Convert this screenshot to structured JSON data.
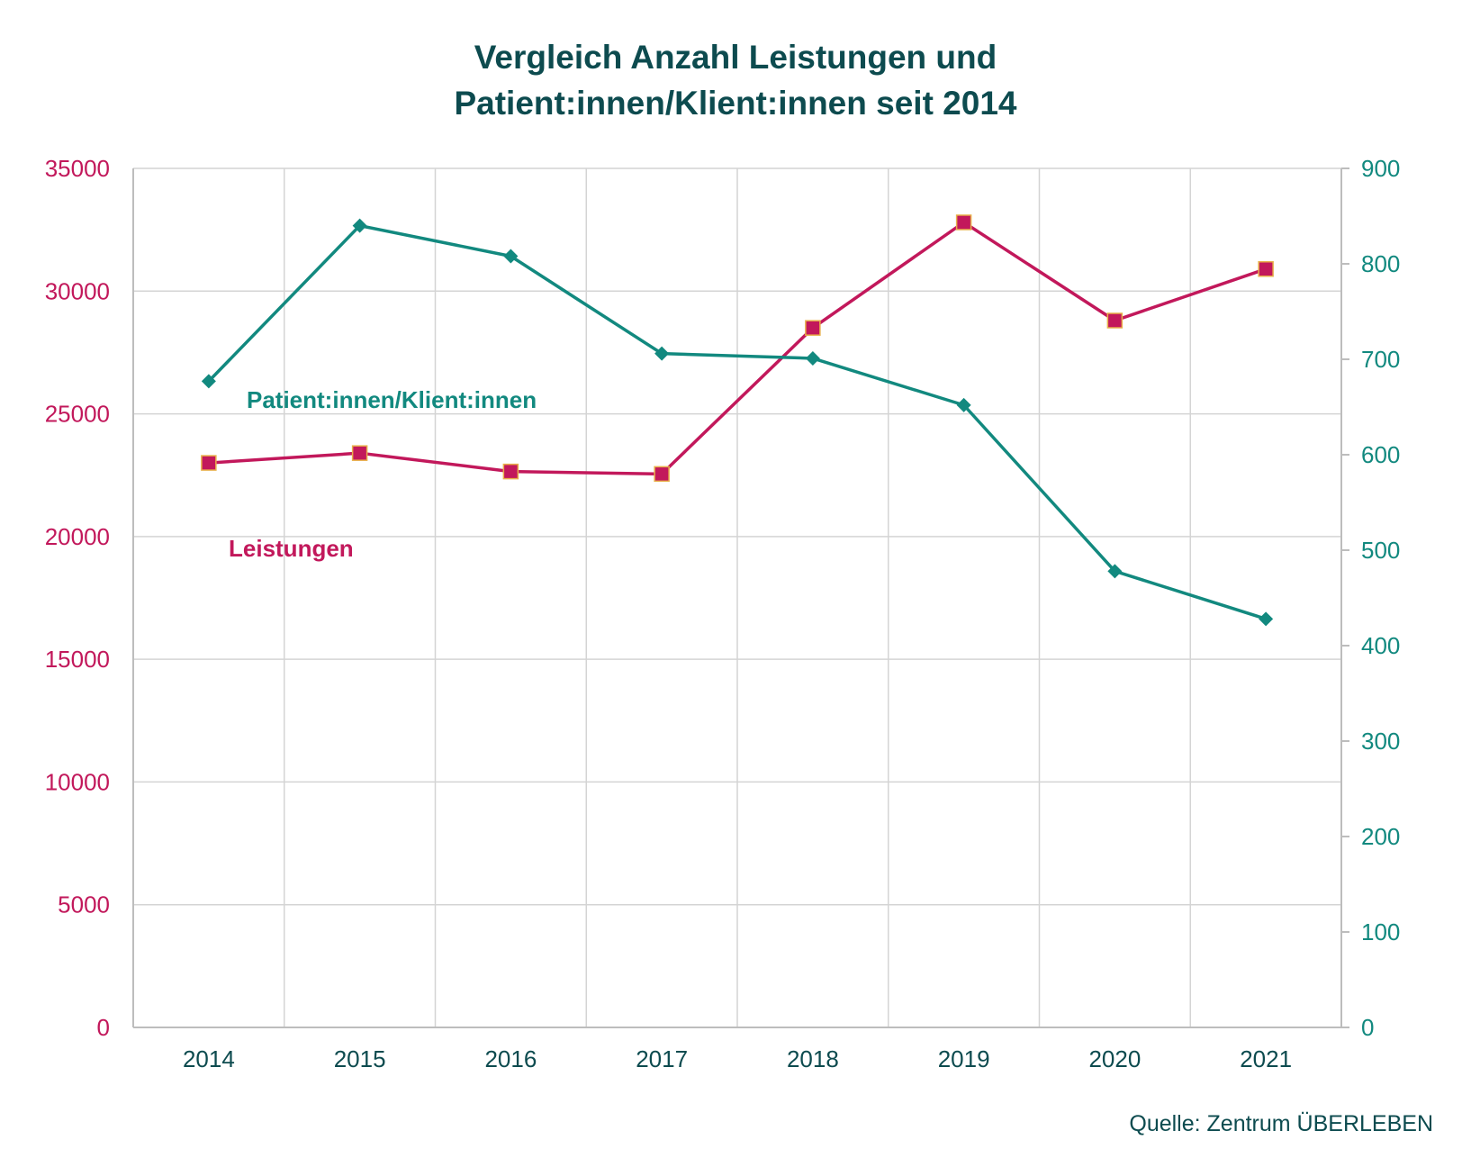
{
  "title_lines": [
    "Vergleich Anzahl Leistungen und",
    "Patient:innen/Klient:innen seit 2014"
  ],
  "source": "Quelle: Zentrum ÜBERLEBEN",
  "colors": {
    "leistungen": "#c2185b",
    "patienten": "#12897f",
    "left_axis_text": "#c2185b",
    "right_axis_text": "#12897f",
    "x_axis_text": "#0d4b4f",
    "grid": "#d4d4d4",
    "marker_edge": "#e8b04a"
  },
  "chart_data": {
    "type": "line",
    "categories": [
      "2014",
      "2015",
      "2016",
      "2017",
      "2018",
      "2019",
      "2020",
      "2021"
    ],
    "grid": true,
    "y_left": {
      "range": [
        0,
        35000
      ],
      "ticks": [
        "0",
        "5000",
        "10000",
        "15000",
        "20000",
        "25000",
        "30000",
        "35000"
      ]
    },
    "y_right": {
      "range": [
        0,
        900
      ],
      "ticks": [
        "0",
        "100",
        "200",
        "300",
        "400",
        "500",
        "600",
        "700",
        "800",
        "900"
      ]
    },
    "series": [
      {
        "name": "Leistungen",
        "axis": "left",
        "marker": "square",
        "values": [
          23000,
          23400,
          22650,
          22550,
          28500,
          32800,
          28800,
          30900
        ]
      },
      {
        "name": "Patient:innen/Klient:innen",
        "axis": "right",
        "marker": "diamond",
        "values": [
          677,
          840,
          808,
          706,
          701,
          652,
          478,
          428
        ]
      }
    ]
  }
}
